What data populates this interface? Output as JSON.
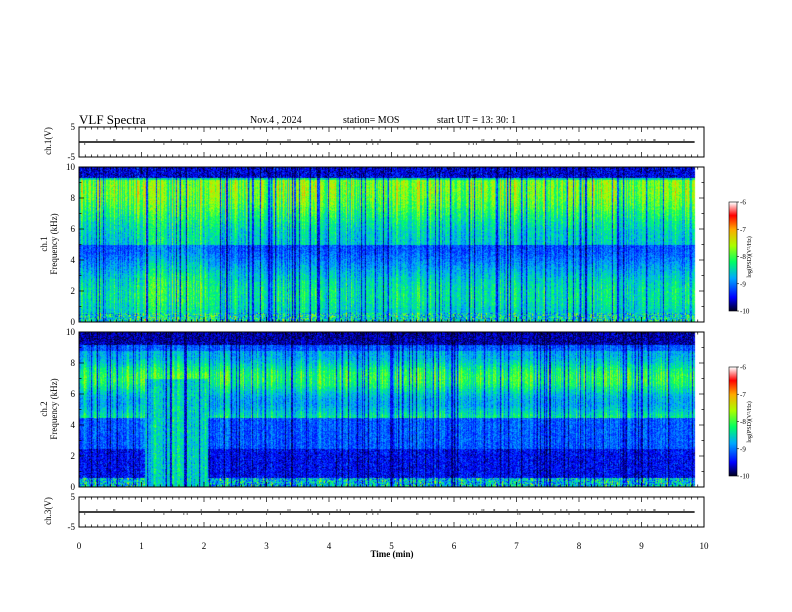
{
  "header": {
    "title": "VLF Spectra",
    "date": "Nov.4 , 2024",
    "station": "station= MOS",
    "start": "start UT =  13: 30: 1"
  },
  "chart_data": [
    {
      "type": "line",
      "panel": "ch1-voltage",
      "ylabel": "ch.1(V)",
      "ylim": [
        -5,
        5
      ],
      "yticks": [
        "5",
        "-5"
      ],
      "xlim": [
        0,
        10
      ],
      "series": [
        {
          "x": [
            0,
            2,
            4,
            6,
            8,
            9.85
          ],
          "values": [
            0,
            0,
            0,
            0,
            0,
            0
          ]
        }
      ]
    },
    {
      "type": "heatmap",
      "panel": "ch1-spectrogram",
      "ylabel": "Frequency (kHz)",
      "ylabel2": "ch.1",
      "ylim": [
        0,
        10
      ],
      "yticks": [
        "0",
        "2",
        "4",
        "6",
        "8",
        "10"
      ],
      "xlim": [
        0,
        10
      ],
      "data_xmax": 9.85,
      "colorbar": {
        "label": "log(PSD)(V²/Hz)",
        "range": [
          -10,
          -6
        ],
        "ticks": [
          "-6",
          "-7",
          "-8",
          "-9",
          "-10"
        ]
      }
    },
    {
      "type": "heatmap",
      "panel": "ch2-spectrogram",
      "ylabel": "Frequency (kHz)",
      "ylabel2": "ch.2",
      "ylim": [
        0,
        10
      ],
      "yticks": [
        "0",
        "2",
        "4",
        "6",
        "8",
        "10"
      ],
      "xlim": [
        0,
        10
      ],
      "data_xmax": 9.85,
      "colorbar": {
        "label": "log(PSD)(V²/Hz)",
        "range": [
          -10,
          -6
        ],
        "ticks": [
          "-6",
          "-7",
          "-8",
          "-9",
          "-10"
        ]
      }
    },
    {
      "type": "line",
      "panel": "ch3-voltage",
      "ylabel": "ch.3(V)",
      "ylim": [
        -5,
        5
      ],
      "yticks": [
        "5",
        "-5"
      ],
      "xlim": [
        0,
        10
      ],
      "xlabel": "Time (min)",
      "xticks": [
        "0",
        "1",
        "2",
        "3",
        "4",
        "5",
        "6",
        "7",
        "8",
        "9",
        "10"
      ],
      "series": [
        {
          "x": [
            0,
            2,
            4,
            6,
            8,
            9.85
          ],
          "values": [
            0,
            0,
            0,
            0,
            0,
            0
          ]
        }
      ]
    }
  ],
  "colors": {
    "colormap": [
      "#000033",
      "#0000ff",
      "#00aaff",
      "#00ff66",
      "#aaff00",
      "#ffaa00",
      "#ff0000",
      "#ffffff"
    ]
  }
}
